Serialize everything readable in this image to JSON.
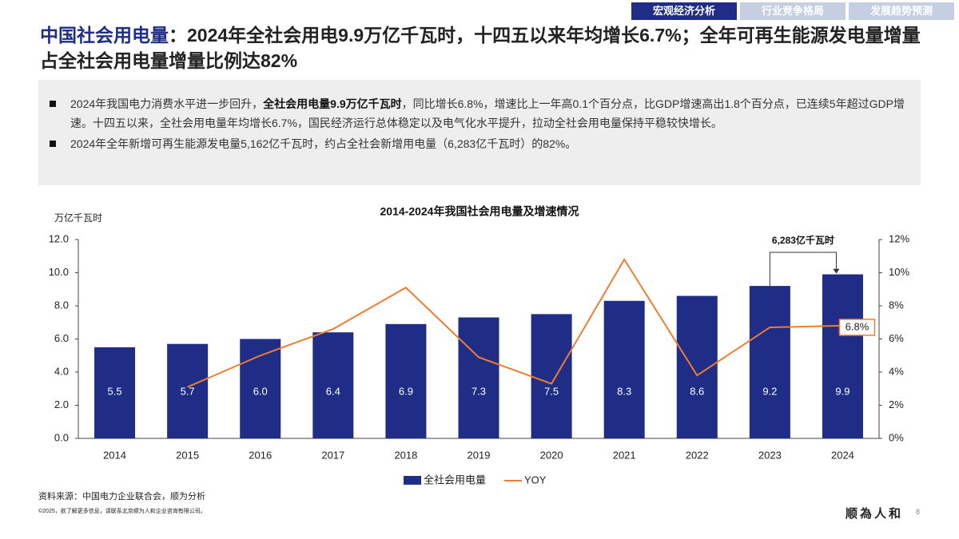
{
  "tabs": [
    {
      "label": "宏观经济分析",
      "active": true
    },
    {
      "label": "行业竞争格局",
      "active": false
    },
    {
      "label": "发展趋势预测",
      "active": false
    }
  ],
  "title": {
    "highlight": "中国社会用电量",
    "text": "：2024年全社会用电9.9万亿千瓦时，十四五以来年均增长6.7%；全年可再生能源发电量增量占全社会用电量增量比例达82%"
  },
  "bullets": [
    [
      {
        "text": "2024年我国电力消费水平进一步回升，",
        "bold": false
      },
      {
        "text": "全社会用电量9.9万亿千瓦时",
        "bold": true
      },
      {
        "text": "，同比增长6.8%，增速比上一年高0.1个百分点，比GDP增速高出1.8个百分点，已连续5年超过GDP增速。十四五以来，全社会用电量年均增长6.7%，国民经济运行总体稳定以及电气化水平提升，拉动全社会用电量保持平稳较快增长。",
        "bold": false
      }
    ],
    [
      {
        "text": "2024年全年新增可再生能源发电量5,162亿千瓦时，约占全社会新增用电量（6,283亿千瓦时）的82%。",
        "bold": false
      }
    ]
  ],
  "chart_data": {
    "type": "bar",
    "title": "2014-2024年我国社会用电量及增速情况",
    "y_label": "万亿千瓦时",
    "categories": [
      "2014",
      "2015",
      "2016",
      "2017",
      "2018",
      "2019",
      "2020",
      "2021",
      "2022",
      "2023",
      "2024"
    ],
    "series": [
      {
        "name": "全社会用电量",
        "type": "bar",
        "color": "#1f2d86",
        "values": [
          5.5,
          5.7,
          6.0,
          6.4,
          6.9,
          7.3,
          7.5,
          8.3,
          8.6,
          9.2,
          9.9
        ],
        "value_labels": [
          "5.5",
          "5.7",
          "6.0",
          "6.4",
          "6.9",
          "7.3",
          "7.5",
          "8.3",
          "8.6",
          "9.2",
          "9.9"
        ]
      },
      {
        "name": "YOY",
        "type": "line",
        "axis": "y2",
        "color": "#ee7d31",
        "values": [
          null,
          3.1,
          5.0,
          6.6,
          9.1,
          4.9,
          3.3,
          10.8,
          3.8,
          6.7,
          6.8
        ],
        "value_labels": [
          null,
          null,
          null,
          null,
          null,
          null,
          null,
          null,
          null,
          null,
          "6.8%"
        ]
      }
    ],
    "ylim": [
      0,
      12
    ],
    "yticks": [
      {
        "value": 0,
        "label": "0.0"
      },
      {
        "value": 2,
        "label": "2.0"
      },
      {
        "value": 4,
        "label": "4.0"
      },
      {
        "value": 6,
        "label": "6.0"
      },
      {
        "value": 8,
        "label": "8.0"
      },
      {
        "value": 10,
        "label": "10.0"
      },
      {
        "value": 12,
        "label": "12.0"
      }
    ],
    "y2lim": [
      0,
      12
    ],
    "y2ticks": [
      {
        "value": 0,
        "label": "0%"
      },
      {
        "value": 2,
        "label": "2%"
      },
      {
        "value": 4,
        "label": "4%"
      },
      {
        "value": 6,
        "label": "6%"
      },
      {
        "value": 8,
        "label": "8%"
      },
      {
        "value": 10,
        "label": "10%"
      },
      {
        "value": 12,
        "label": "12%"
      }
    ],
    "annotation": "6,283亿千瓦时",
    "legend": "bottom"
  },
  "source": "资料来源：中国电力企业联合会，顺为分析",
  "copyright": "©2025，欲了解更多信息，请联系北京顺为人和企业咨询有限公司。",
  "logo": "顺為人和",
  "page_number": "8"
}
